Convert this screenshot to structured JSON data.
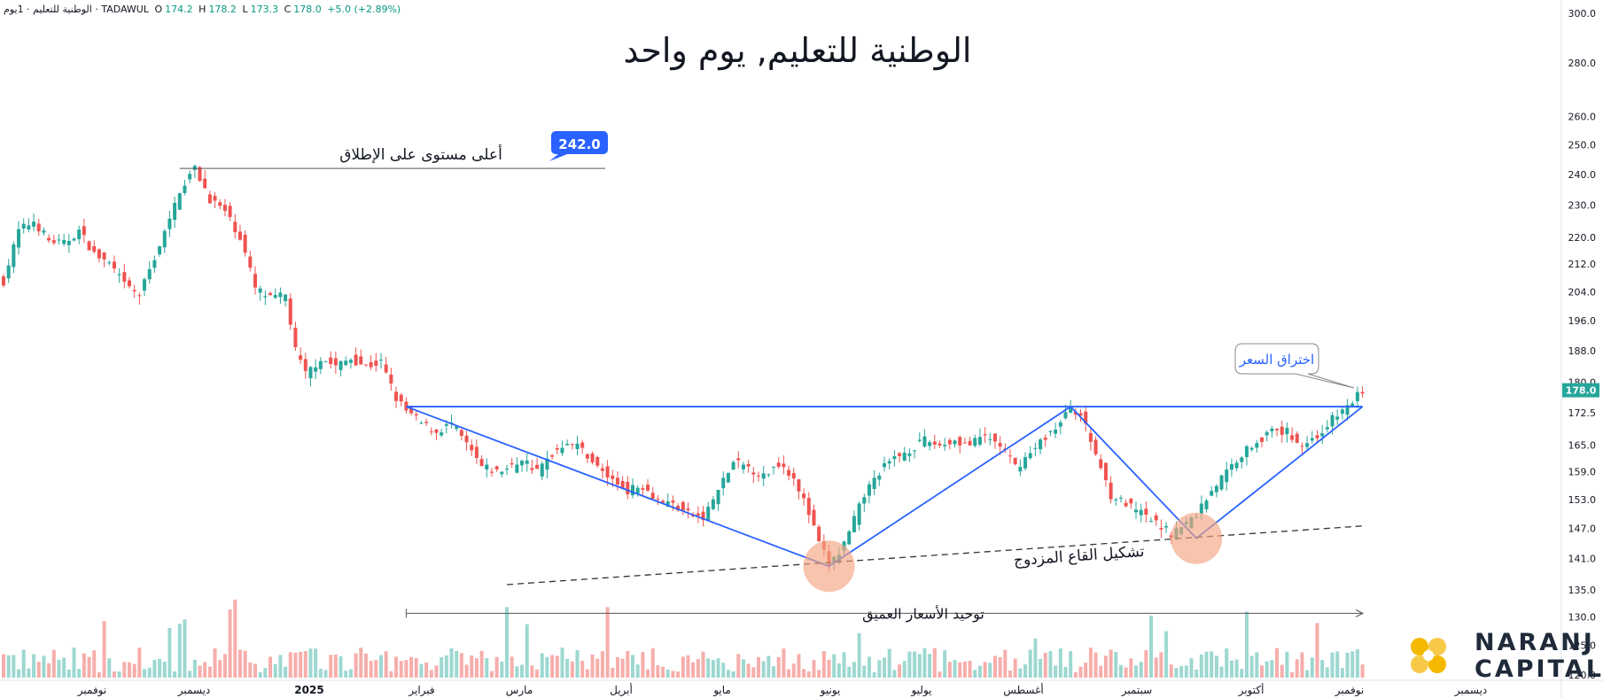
{
  "header": {
    "symbol": "الوطنية للتعليم · 1يوم · TADAWUL",
    "open_label": "O",
    "open": "174.2",
    "high_label": "H",
    "high": "178.2",
    "low_label": "L",
    "low": "173.3",
    "close_label": "C",
    "close": "178.0",
    "change": "+5.0 (+2.89%)"
  },
  "title": "الوطنية للتعليم, يوم واحد",
  "logo": {
    "line1": "NARANJ",
    "line2": "CAPITAL"
  },
  "colors": {
    "up": "#26a69a",
    "down": "#ef5350",
    "pattern": "#2962ff",
    "circle": "#f4a582",
    "axis_text": "#131722"
  },
  "chart_data": {
    "type": "candlestick",
    "y_axis": {
      "position": "right",
      "scale": "log",
      "range": [
        120,
        300
      ],
      "ticks": [
        "300.0",
        "280.0",
        "260.0",
        "250.0",
        "240.0",
        "230.0",
        "220.0",
        "212.0",
        "204.0",
        "196.0",
        "188.0",
        "180.0",
        "172.5",
        "165.0",
        "159.0",
        "153.0",
        "147.0",
        "141.0",
        "135.0",
        "130.0",
        "125.0",
        "120.0"
      ]
    },
    "x_axis": {
      "labels": [
        "نوفمبر",
        "ديسمبر",
        "2025",
        "فبراير",
        "مارس",
        "أبريل",
        "مايو",
        "يونيو",
        "يوليو",
        "أغسطس",
        "سبتمبر",
        "أكتوبر",
        "نوفمبر",
        "ديسمبر"
      ]
    },
    "price_path": [
      {
        "x": 0,
        "y": 207
      },
      {
        "x": 3,
        "y": 222
      },
      {
        "x": 6,
        "y": 225
      },
      {
        "x": 9,
        "y": 219
      },
      {
        "x": 12,
        "y": 218
      },
      {
        "x": 15,
        "y": 222
      },
      {
        "x": 18,
        "y": 215
      },
      {
        "x": 21,
        "y": 212
      },
      {
        "x": 24,
        "y": 206
      },
      {
        "x": 27,
        "y": 203
      },
      {
        "x": 30,
        "y": 214
      },
      {
        "x": 33,
        "y": 225
      },
      {
        "x": 35,
        "y": 235
      },
      {
        "x": 38,
        "y": 242
      },
      {
        "x": 41,
        "y": 232
      },
      {
        "x": 44,
        "y": 228
      },
      {
        "x": 47,
        "y": 220
      },
      {
        "x": 50,
        "y": 205
      },
      {
        "x": 53,
        "y": 202
      },
      {
        "x": 56,
        "y": 203
      },
      {
        "x": 58,
        "y": 188
      },
      {
        "x": 60,
        "y": 182
      },
      {
        "x": 63,
        "y": 186
      },
      {
        "x": 66,
        "y": 184
      },
      {
        "x": 69,
        "y": 186
      },
      {
        "x": 72,
        "y": 184
      },
      {
        "x": 75,
        "y": 185
      },
      {
        "x": 78,
        "y": 176
      },
      {
        "x": 80,
        "y": 173
      },
      {
        "x": 83,
        "y": 170
      },
      {
        "x": 86,
        "y": 168
      },
      {
        "x": 89,
        "y": 170
      },
      {
        "x": 92,
        "y": 165
      },
      {
        "x": 95,
        "y": 160
      },
      {
        "x": 98,
        "y": 159
      },
      {
        "x": 101,
        "y": 160
      },
      {
        "x": 103,
        "y": 162
      },
      {
        "x": 106,
        "y": 159
      },
      {
        "x": 109,
        "y": 163
      },
      {
        "x": 112,
        "y": 166
      },
      {
        "x": 115,
        "y": 164
      },
      {
        "x": 118,
        "y": 160
      },
      {
        "x": 121,
        "y": 157
      },
      {
        "x": 124,
        "y": 155
      },
      {
        "x": 127,
        "y": 156
      },
      {
        "x": 130,
        "y": 153
      },
      {
        "x": 133,
        "y": 152
      },
      {
        "x": 136,
        "y": 150
      },
      {
        "x": 139,
        "y": 149
      },
      {
        "x": 142,
        "y": 155
      },
      {
        "x": 145,
        "y": 161
      },
      {
        "x": 148,
        "y": 160
      },
      {
        "x": 151,
        "y": 158
      },
      {
        "x": 154,
        "y": 161
      },
      {
        "x": 157,
        "y": 158
      },
      {
        "x": 160,
        "y": 150
      },
      {
        "x": 162,
        "y": 144
      },
      {
        "x": 164,
        "y": 140
      },
      {
        "x": 166,
        "y": 142
      },
      {
        "x": 168,
        "y": 146
      },
      {
        "x": 171,
        "y": 154
      },
      {
        "x": 174,
        "y": 159
      },
      {
        "x": 177,
        "y": 162
      },
      {
        "x": 180,
        "y": 164
      },
      {
        "x": 183,
        "y": 166
      },
      {
        "x": 186,
        "y": 165
      },
      {
        "x": 189,
        "y": 166
      },
      {
        "x": 192,
        "y": 165
      },
      {
        "x": 195,
        "y": 167
      },
      {
        "x": 198,
        "y": 165
      },
      {
        "x": 201,
        "y": 160
      },
      {
        "x": 204,
        "y": 163
      },
      {
        "x": 207,
        "y": 167
      },
      {
        "x": 210,
        "y": 170
      },
      {
        "x": 212,
        "y": 174
      },
      {
        "x": 214,
        "y": 172
      },
      {
        "x": 217,
        "y": 163
      },
      {
        "x": 220,
        "y": 154
      },
      {
        "x": 223,
        "y": 152
      },
      {
        "x": 226,
        "y": 150
      },
      {
        "x": 229,
        "y": 148
      },
      {
        "x": 232,
        "y": 146
      },
      {
        "x": 235,
        "y": 148
      },
      {
        "x": 237,
        "y": 150
      },
      {
        "x": 240,
        "y": 155
      },
      {
        "x": 243,
        "y": 159
      },
      {
        "x": 246,
        "y": 163
      },
      {
        "x": 249,
        "y": 166
      },
      {
        "x": 252,
        "y": 168
      },
      {
        "x": 255,
        "y": 168
      },
      {
        "x": 258,
        "y": 165
      },
      {
        "x": 261,
        "y": 167
      },
      {
        "x": 264,
        "y": 171
      },
      {
        "x": 267,
        "y": 174
      },
      {
        "x": 270,
        "y": 178
      }
    ],
    "annotations": {
      "ath_label": "أعلى مستوى على الإطلاق",
      "ath_value": "242.0",
      "breakout_label": "اختراق السعر",
      "double_bottom_label": "تشكيل القاع المزدوج",
      "consolidation_label": "توحيد الأسعار العميق",
      "last_price": "178.0"
    }
  }
}
